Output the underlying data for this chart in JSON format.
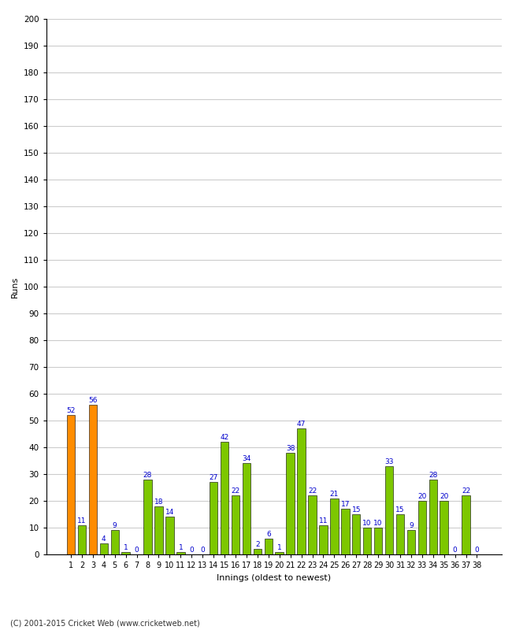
{
  "innings": [
    1,
    2,
    3,
    4,
    5,
    6,
    7,
    8,
    9,
    10,
    11,
    12,
    13,
    14,
    15,
    16,
    17,
    18,
    19,
    20,
    21,
    22,
    23,
    24,
    25,
    26,
    27,
    28,
    29,
    30,
    31,
    32,
    33,
    34,
    35,
    36,
    37,
    38
  ],
  "values": [
    52,
    11,
    56,
    4,
    9,
    1,
    0,
    28,
    18,
    14,
    1,
    0,
    0,
    27,
    42,
    22,
    34,
    2,
    6,
    1,
    38,
    47,
    22,
    11,
    21,
    17,
    15,
    10,
    10,
    33,
    15,
    9,
    20,
    28,
    20,
    0,
    22,
    0
  ],
  "colors": [
    "#ff8c00",
    "#7dc700",
    "#ff8c00",
    "#7dc700",
    "#7dc700",
    "#7dc700",
    "#7dc700",
    "#7dc700",
    "#7dc700",
    "#7dc700",
    "#7dc700",
    "#7dc700",
    "#7dc700",
    "#7dc700",
    "#7dc700",
    "#7dc700",
    "#7dc700",
    "#7dc700",
    "#7dc700",
    "#7dc700",
    "#7dc700",
    "#7dc700",
    "#7dc700",
    "#7dc700",
    "#7dc700",
    "#7dc700",
    "#7dc700",
    "#7dc700",
    "#7dc700",
    "#7dc700",
    "#7dc700",
    "#7dc700",
    "#7dc700",
    "#7dc700",
    "#7dc700",
    "#7dc700",
    "#7dc700",
    "#7dc700"
  ],
  "ylabel": "Runs",
  "xlabel": "Innings (oldest to newest)",
  "ylim": [
    0,
    200
  ],
  "yticks": [
    0,
    10,
    20,
    30,
    40,
    50,
    60,
    70,
    80,
    90,
    100,
    110,
    120,
    130,
    140,
    150,
    160,
    170,
    180,
    190,
    200
  ],
  "copyright": "(C) 2001-2015 Cricket Web (www.cricketweb.net)",
  "label_color": "#0000cc",
  "label_fontsize": 6.5,
  "bar_edge_color": "#000000",
  "grid_color": "#cccccc",
  "background_color": "#ffffff",
  "tick_fontsize": 7.5,
  "ylabel_fontsize": 8,
  "xlabel_fontsize": 8
}
